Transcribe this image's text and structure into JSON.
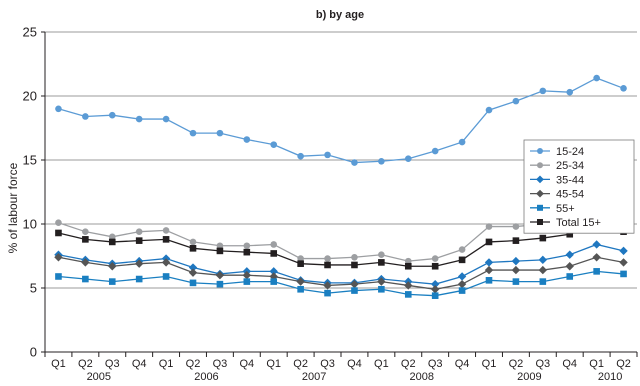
{
  "chart_data": {
    "type": "line",
    "title": "b) by age",
    "ylabel": "% of labour force",
    "ylim": [
      0,
      25
    ],
    "yticks": [
      0,
      5,
      10,
      15,
      20,
      25
    ],
    "grid": true,
    "legend_position": "right",
    "quarters": [
      "Q1",
      "Q2",
      "Q3",
      "Q4",
      "Q1",
      "Q2",
      "Q3",
      "Q4",
      "Q1",
      "Q2",
      "Q3",
      "Q4",
      "Q1",
      "Q2",
      "Q3",
      "Q4",
      "Q1",
      "Q2",
      "Q3",
      "Q4",
      "Q1",
      "Q2"
    ],
    "years": [
      {
        "label": "2005",
        "start": 0,
        "end": 3
      },
      {
        "label": "2006",
        "start": 4,
        "end": 7
      },
      {
        "label": "2007",
        "start": 8,
        "end": 11
      },
      {
        "label": "2008",
        "start": 12,
        "end": 15
      },
      {
        "label": "2009",
        "start": 16,
        "end": 19
      },
      {
        "label": "2010",
        "start": 20,
        "end": 21
      }
    ],
    "series": [
      {
        "name": "15-24",
        "color": "#5b9bd5",
        "marker": "circle",
        "values": [
          19.0,
          18.4,
          18.5,
          18.2,
          18.2,
          17.1,
          17.1,
          16.6,
          16.2,
          15.3,
          15.4,
          14.8,
          14.9,
          15.1,
          15.7,
          16.4,
          18.9,
          19.6,
          20.4,
          20.3,
          21.4,
          20.6
        ]
      },
      {
        "name": "25-34",
        "color": "#9d9fa2",
        "marker": "circle",
        "values": [
          10.1,
          9.4,
          9.0,
          9.4,
          9.5,
          8.6,
          8.3,
          8.3,
          8.4,
          7.3,
          7.3,
          7.4,
          7.6,
          7.1,
          7.3,
          8.0,
          9.8,
          9.8,
          10.0,
          10.6,
          11.8,
          10.7
        ]
      },
      {
        "name": "35-44",
        "color": "#1f77c0",
        "marker": "diamond",
        "values": [
          7.6,
          7.2,
          6.9,
          7.1,
          7.3,
          6.6,
          6.1,
          6.3,
          6.3,
          5.6,
          5.4,
          5.4,
          5.7,
          5.5,
          5.3,
          5.9,
          7.0,
          7.1,
          7.2,
          7.6,
          8.4,
          7.9
        ]
      },
      {
        "name": "45-54",
        "color": "#555555",
        "marker": "diamond",
        "values": [
          7.4,
          7.0,
          6.7,
          6.9,
          7.0,
          6.2,
          6.0,
          6.0,
          5.9,
          5.5,
          5.2,
          5.3,
          5.5,
          5.2,
          4.9,
          5.3,
          6.4,
          6.4,
          6.4,
          6.7,
          7.4,
          7.0
        ]
      },
      {
        "name": "55+",
        "color": "#1a7fc1",
        "marker": "square",
        "values": [
          5.9,
          5.7,
          5.5,
          5.7,
          5.9,
          5.4,
          5.3,
          5.5,
          5.5,
          4.9,
          4.6,
          4.8,
          4.9,
          4.5,
          4.4,
          4.8,
          5.6,
          5.5,
          5.5,
          5.9,
          6.3,
          6.1
        ]
      },
      {
        "name": "Total 15+",
        "color": "#231f20",
        "marker": "square",
        "values": [
          9.3,
          8.8,
          8.6,
          8.7,
          8.8,
          8.1,
          7.9,
          7.8,
          7.7,
          6.9,
          6.8,
          6.8,
          7.0,
          6.7,
          6.7,
          7.2,
          8.6,
          8.7,
          8.9,
          9.2,
          10.0,
          9.4
        ]
      }
    ]
  }
}
